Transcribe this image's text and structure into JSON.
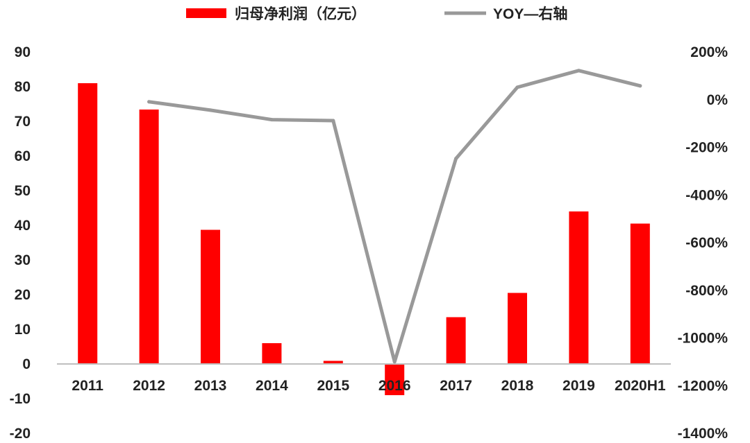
{
  "colors": {
    "bar": "#ff0000",
    "line": "#999999",
    "axis": "#bfbfbf",
    "text": "#222222"
  },
  "chart_data": {
    "type": "bar",
    "categories": [
      "2011",
      "2012",
      "2013",
      "2014",
      "2015",
      "2016",
      "2017",
      "2018",
      "2019",
      "2020H1"
    ],
    "series": [
      {
        "name": "归母净利润（亿元）",
        "type": "bar",
        "axis": "left",
        "values": [
          81,
          73.4,
          38.7,
          6,
          0.9,
          -9,
          13.5,
          20.5,
          44,
          40.5
        ]
      },
      {
        "name": "YOY—右轴",
        "type": "line",
        "axis": "right",
        "values": [
          null,
          -9,
          -44,
          -84,
          -88,
          -1100,
          -247,
          52,
          122,
          58
        ]
      }
    ],
    "left_axis": {
      "ylim": [
        -20,
        90
      ],
      "ticks": [
        "90",
        "80",
        "70",
        "60",
        "50",
        "40",
        "30",
        "20",
        "10",
        "0",
        "-10",
        "-20"
      ]
    },
    "right_axis": {
      "ylim": [
        -1400,
        200
      ],
      "ticks": [
        "200%",
        "0%",
        "-200%",
        "-400%",
        "-600%",
        "-800%",
        "-1000%",
        "-1200%",
        "-1400%"
      ]
    },
    "legend": {
      "position": "top"
    },
    "grid": false
  }
}
